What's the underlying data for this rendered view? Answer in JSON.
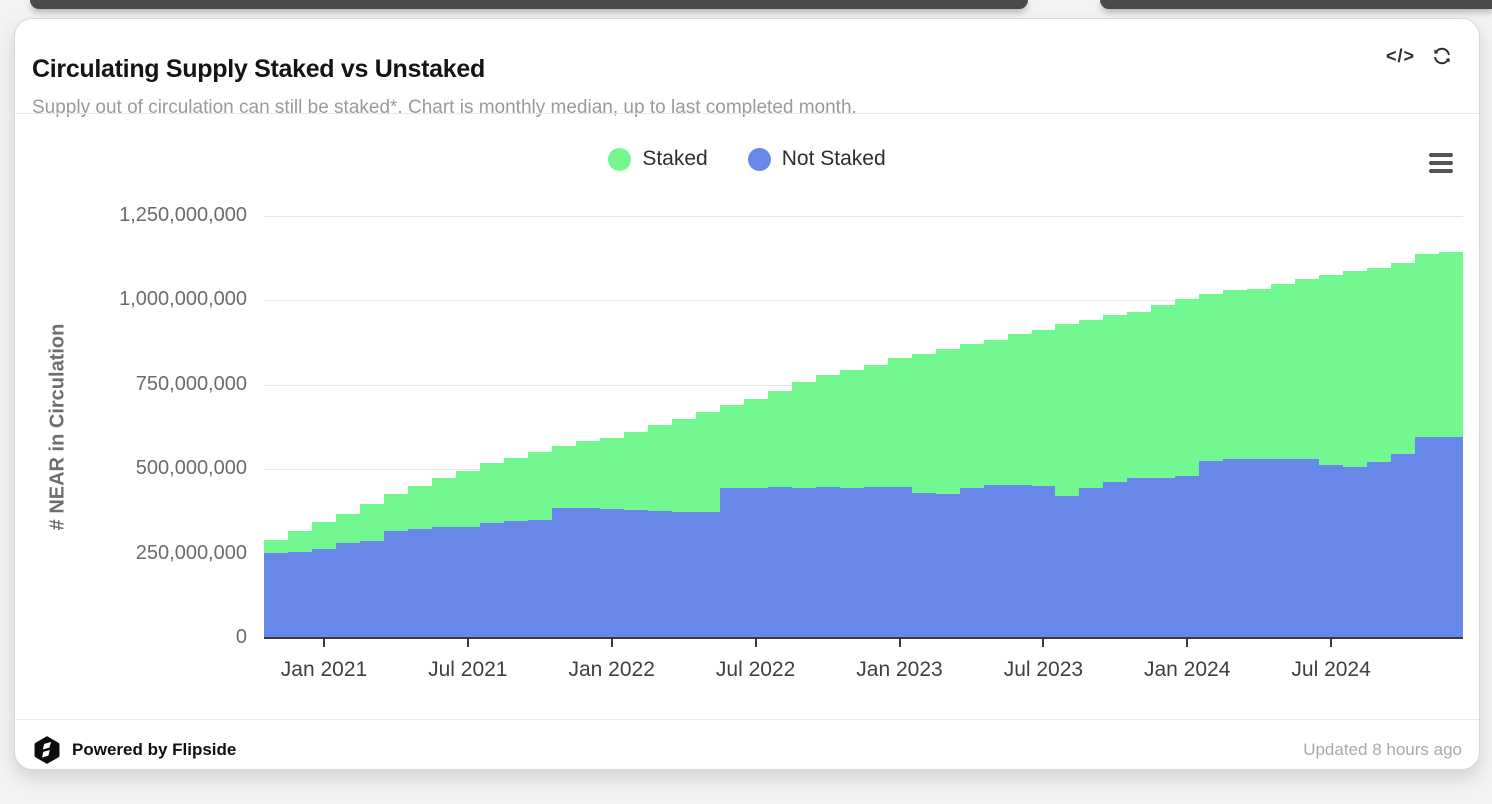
{
  "header": {
    "title": "Circulating Supply Staked vs Unstaked",
    "subtitle": "Supply out of circulation can still be staked*. Chart is monthly median, up to last completed month.",
    "icons": {
      "code": "</>",
      "refresh": "refresh-circular-arrows",
      "menu": "hamburger-menu"
    }
  },
  "footer": {
    "powered_by": "Powered by Flipside",
    "updated": "Updated 8 hours ago",
    "logo": "flipside-cube-logo"
  },
  "chart_data": {
    "type": "bar",
    "stacked": true,
    "title": "",
    "xlabel": "",
    "ylabel": "# NEAR in Circulation",
    "ylim": [
      0,
      1250000000
    ],
    "grid": true,
    "legend_position": "top",
    "legend": [
      {
        "label": "Staked",
        "color": "#73f790"
      },
      {
        "label": "Not Staked",
        "color": "#6787e9"
      }
    ],
    "ytick_labels_top_down": [
      "1,250,000,000",
      "1,000,000,000",
      "750,000,000",
      "500,000,000",
      "250,000,000",
      "0"
    ],
    "xticks": [
      {
        "label": "Jan 2021",
        "index": 2
      },
      {
        "label": "Jul 2021",
        "index": 8
      },
      {
        "label": "Jan 2022",
        "index": 14
      },
      {
        "label": "Jul 2022",
        "index": 20
      },
      {
        "label": "Jan 2023",
        "index": 26
      },
      {
        "label": "Jul 2023",
        "index": 32
      },
      {
        "label": "Jan 2024",
        "index": 38
      },
      {
        "label": "Jul 2024",
        "index": 44
      }
    ],
    "categories": [
      "Nov 2020",
      "Dec 2020",
      "Jan 2021",
      "Feb 2021",
      "Mar 2021",
      "Apr 2021",
      "May 2021",
      "Jun 2021",
      "Jul 2021",
      "Aug 2021",
      "Sep 2021",
      "Oct 2021",
      "Nov 2021",
      "Dec 2021",
      "Jan 2022",
      "Feb 2022",
      "Mar 2022",
      "Apr 2022",
      "May 2022",
      "Jun 2022",
      "Jul 2022",
      "Aug 2022",
      "Sep 2022",
      "Oct 2022",
      "Nov 2022",
      "Dec 2022",
      "Jan 2023",
      "Feb 2023",
      "Mar 2023",
      "Apr 2023",
      "May 2023",
      "Jun 2023",
      "Jul 2023",
      "Aug 2023",
      "Sep 2023",
      "Oct 2023",
      "Nov 2023",
      "Dec 2023",
      "Jan 2024",
      "Feb 2024",
      "Mar 2024",
      "Apr 2024",
      "May 2024",
      "Jun 2024",
      "Jul 2024",
      "Aug 2024",
      "Sep 2024",
      "Oct 2024",
      "Nov 2024",
      "Dec 2024"
    ],
    "series": [
      {
        "name": "Staked",
        "color": "#73f790",
        "values": [
          37000000,
          60000000,
          80000000,
          87000000,
          109000000,
          110000000,
          128000000,
          144000000,
          166000000,
          176000000,
          186000000,
          201000000,
          185000000,
          198000000,
          211000000,
          231000000,
          255000000,
          278000000,
          298000000,
          246000000,
          264000000,
          283000000,
          313000000,
          330000000,
          348000000,
          362000000,
          382000000,
          412000000,
          430000000,
          428000000,
          430000000,
          446000000,
          462000000,
          509000000,
          497000000,
          495000000,
          492000000,
          512000000,
          522000000,
          493000000,
          500000000,
          504000000,
          519000000,
          531000000,
          562000000,
          582000000,
          574000000,
          565000000,
          544000000,
          547000000
        ]
      },
      {
        "name": "Not Staked",
        "color": "#6787e9",
        "values": [
          253000000,
          256000000,
          265000000,
          280000000,
          288000000,
          318000000,
          323000000,
          330000000,
          330000000,
          342000000,
          347000000,
          349000000,
          385000000,
          385000000,
          382000000,
          379000000,
          375000000,
          372000000,
          372000000,
          444000000,
          445000000,
          448000000,
          445000000,
          448000000,
          445000000,
          448000000,
          448000000,
          430000000,
          427000000,
          444000000,
          454000000,
          454000000,
          449000000,
          422000000,
          444000000,
          461000000,
          474000000,
          474000000,
          481000000,
          525000000,
          530000000,
          531000000,
          531000000,
          531000000,
          513000000,
          506000000,
          521000000,
          545000000,
          595000000,
          595000000
        ]
      }
    ]
  }
}
